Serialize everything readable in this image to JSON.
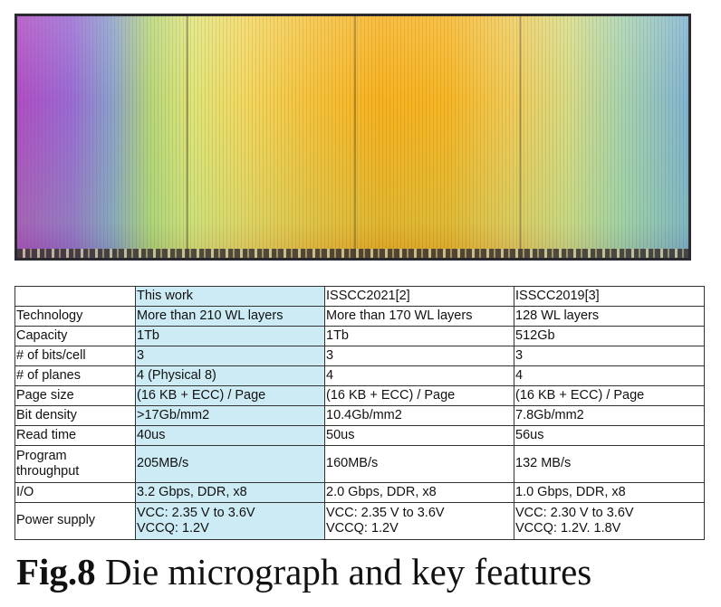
{
  "table": {
    "header": [
      "",
      "This work",
      "ISSCC2021[2]",
      "ISSCC2019[3]"
    ],
    "rows": [
      {
        "label": "Technology",
        "values": [
          "More than 210 WL layers",
          "More than 170 WL layers",
          "128 WL layers"
        ]
      },
      {
        "label": "Capacity",
        "values": [
          "1Tb",
          "1Tb",
          "512Gb"
        ]
      },
      {
        "label": "# of bits/cell",
        "values": [
          "3",
          "3",
          "3"
        ]
      },
      {
        "label": "# of planes",
        "values": [
          "4 (Physical 8)",
          "4",
          "4"
        ]
      },
      {
        "label": "Page size",
        "values": [
          "(16 KB + ECC) / Page",
          "(16 KB + ECC) / Page",
          "(16 KB + ECC) / Page"
        ]
      },
      {
        "label": "Bit density",
        "values": [
          ">17Gb/mm2",
          "10.4Gb/mm2",
          "7.8Gb/mm2"
        ]
      },
      {
        "label": "Read time",
        "values": [
          "40us",
          "50us",
          "56us"
        ]
      },
      {
        "label_lines": [
          "Program",
          "throughput"
        ],
        "values": [
          "205MB/s",
          "160MB/s",
          "132 MB/s"
        ]
      },
      {
        "label": "I/O",
        "values": [
          "3.2 Gbps, DDR, x8",
          "2.0 Gbps, DDR, x8",
          "1.0 Gbps, DDR, x8"
        ]
      },
      {
        "label": "Power supply",
        "value_lines": [
          [
            "VCC: 2.35 V to 3.6V",
            "VCCQ: 1.2V"
          ],
          [
            "VCC: 2.35 V to 3.6V",
            "VCCQ: 1.2V"
          ],
          [
            "VCC: 2.30 V to 3.6V",
            "VCCQ: 1.2V. 1.8V"
          ]
        ]
      }
    ]
  },
  "caption": {
    "fig_label": "Fig.8",
    "text": " Die micrograph and key features"
  },
  "colors": {
    "highlight_column": "#cdebf4"
  }
}
